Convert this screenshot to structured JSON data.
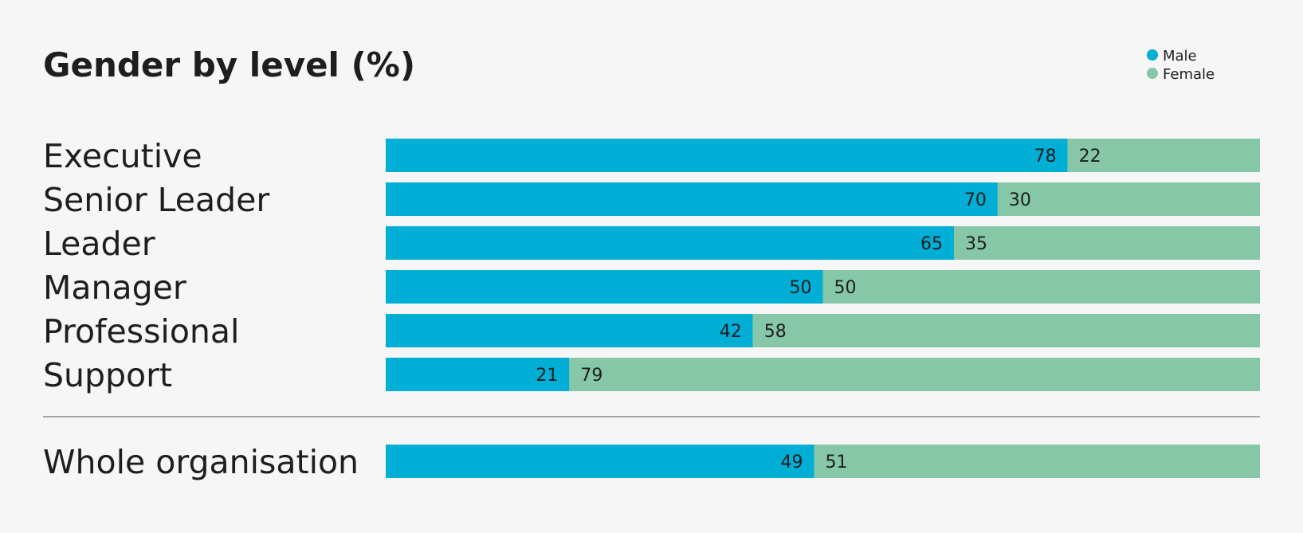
{
  "chart_data": {
    "type": "bar",
    "orientation": "horizontal",
    "stacked": true,
    "title": "Gender by level (%)",
    "categories": [
      "Executive",
      "Senior Leader",
      "Leader",
      "Manager",
      "Professional",
      "Support"
    ],
    "series": [
      {
        "name": "Male",
        "color": "#00aed6",
        "values": [
          78,
          70,
          65,
          50,
          42,
          21
        ]
      },
      {
        "name": "Female",
        "color": "#85c7a7",
        "values": [
          22,
          30,
          35,
          50,
          58,
          79
        ]
      }
    ],
    "summary": {
      "category": "Whole organisation",
      "values": [
        49,
        51
      ]
    },
    "xlim": [
      0,
      100
    ],
    "legend_position": "top-right",
    "grid": false,
    "divider_color": "#8a8a8a"
  }
}
